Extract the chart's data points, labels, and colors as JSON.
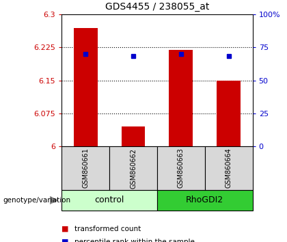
{
  "title": "GDS4455 / 238055_at",
  "samples": [
    "GSM860661",
    "GSM860662",
    "GSM860663",
    "GSM860664"
  ],
  "red_values": [
    6.27,
    6.045,
    6.22,
    6.15
  ],
  "blue_values": [
    6.21,
    6.205,
    6.21,
    6.205
  ],
  "ymin": 6.0,
  "ymax": 6.3,
  "yticks_left": [
    6.0,
    6.075,
    6.15,
    6.225,
    6.3
  ],
  "ytick_left_labels": [
    "6",
    "6.075",
    "6.15",
    "6.225",
    "6.3"
  ],
  "yticks_right": [
    0,
    25,
    50,
    75,
    100
  ],
  "ytick_right_labels": [
    "0",
    "25",
    "50",
    "75",
    "100%"
  ],
  "bar_width": 0.5,
  "bar_color": "#cc0000",
  "dot_color": "#0000cc",
  "control_color": "#ccffcc",
  "rhodgi2_color": "#33cc33",
  "sample_bg": "#d8d8d8",
  "group_label": "genotype/variation",
  "legend_red": "transformed count",
  "legend_blue": "percentile rank within the sample",
  "left_tick_color": "#cc0000",
  "right_tick_color": "#0000cc"
}
